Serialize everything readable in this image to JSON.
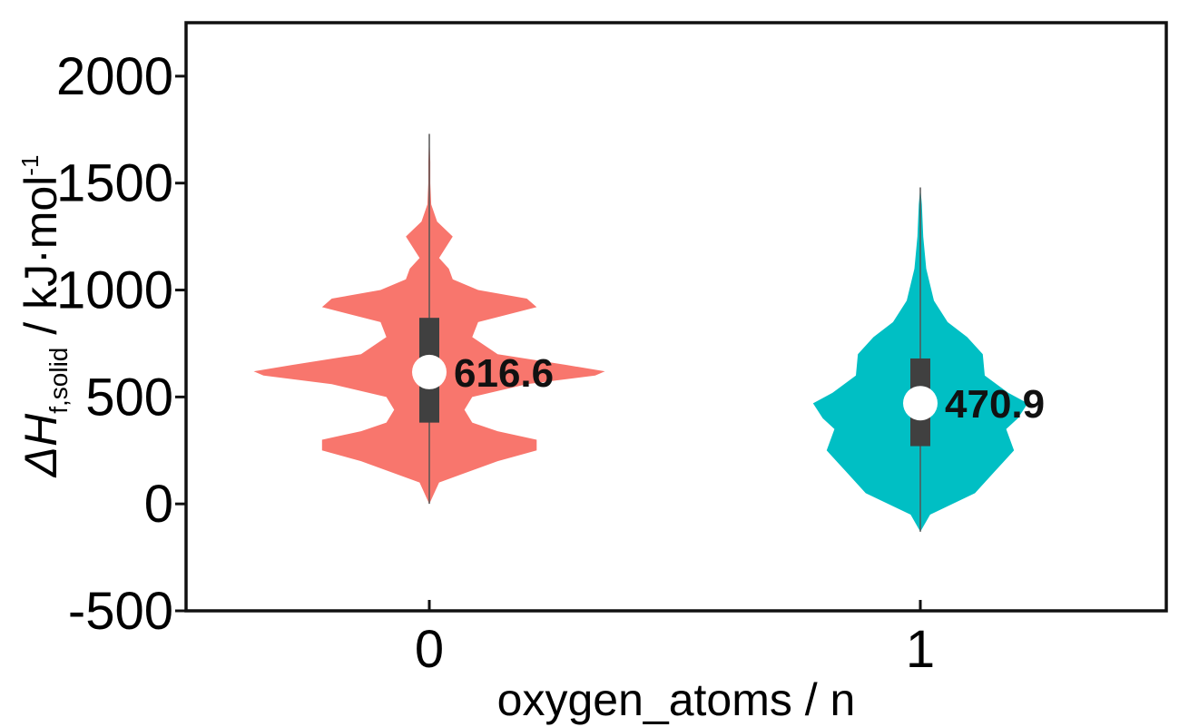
{
  "chart_data": {
    "type": "violin",
    "title": "",
    "xlabel": "oxygen_atoms / n",
    "ylabel": {
      "prefix": "ΔH",
      "subscript": "f,solid",
      "suffix": " / kJ·mol",
      "superscript": "-1"
    },
    "ylim": [
      -500,
      2250
    ],
    "yticks": [
      -500,
      0,
      500,
      1000,
      1500,
      2000
    ],
    "ytick_labels": [
      "-500",
      "0",
      "500",
      "1000",
      "1500",
      "2000"
    ],
    "categories": [
      "0",
      "1"
    ],
    "grid": false,
    "legend": "none",
    "series": [
      {
        "category": "0",
        "color": "#f8766d",
        "median": 616.6,
        "median_label": "616.6",
        "q1": 380,
        "q3": 870,
        "min": 0,
        "max": 1730,
        "density": [
          [
            0,
            0
          ],
          [
            100,
            0.05
          ],
          [
            200,
            0.35
          ],
          [
            250,
            0.55
          ],
          [
            300,
            0.55
          ],
          [
            340,
            0.35
          ],
          [
            380,
            0.22
          ],
          [
            440,
            0.18
          ],
          [
            500,
            0.22
          ],
          [
            560,
            0.5
          ],
          [
            600,
            0.85
          ],
          [
            620,
            0.9
          ],
          [
            650,
            0.7
          ],
          [
            700,
            0.35
          ],
          [
            780,
            0.22
          ],
          [
            850,
            0.25
          ],
          [
            920,
            0.55
          ],
          [
            960,
            0.5
          ],
          [
            1000,
            0.25
          ],
          [
            1050,
            0.12
          ],
          [
            1100,
            0.1
          ],
          [
            1150,
            0.05
          ],
          [
            1250,
            0.12
          ],
          [
            1320,
            0.04
          ],
          [
            1400,
            0.01
          ],
          [
            1500,
            0.005
          ],
          [
            1600,
            0.005
          ],
          [
            1730,
            0
          ]
        ]
      },
      {
        "category": "1",
        "color": "#00bfc4",
        "median": 470.9,
        "median_label": "470.9",
        "q1": 270,
        "q3": 680,
        "min": -130,
        "max": 1480,
        "density": [
          [
            -130,
            0
          ],
          [
            -50,
            0.05
          ],
          [
            50,
            0.28
          ],
          [
            150,
            0.38
          ],
          [
            250,
            0.48
          ],
          [
            350,
            0.44
          ],
          [
            400,
            0.5
          ],
          [
            470,
            0.55
          ],
          [
            520,
            0.45
          ],
          [
            600,
            0.33
          ],
          [
            700,
            0.32
          ],
          [
            780,
            0.24
          ],
          [
            850,
            0.14
          ],
          [
            950,
            0.07
          ],
          [
            1100,
            0.03
          ],
          [
            1250,
            0.015
          ],
          [
            1400,
            0.008
          ],
          [
            1480,
            0
          ]
        ]
      }
    ]
  }
}
